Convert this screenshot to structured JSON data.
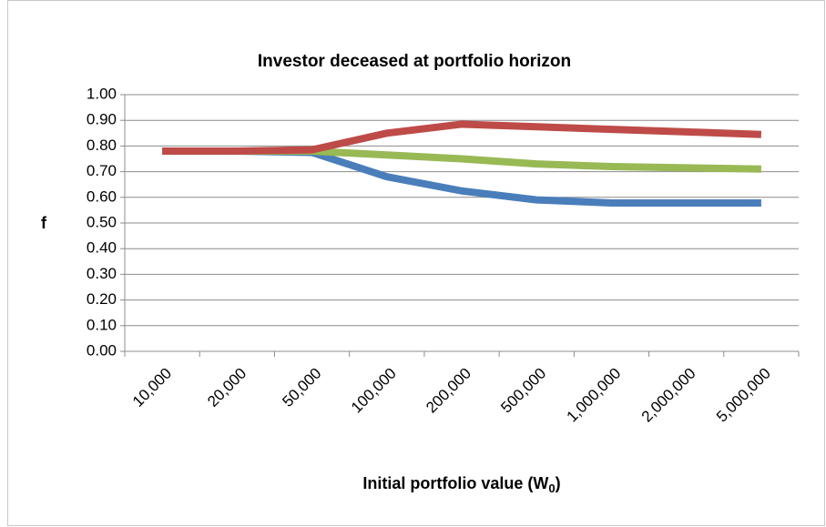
{
  "chart_data": {
    "type": "line",
    "title": "Investor deceased at portfolio horizon",
    "y_label": "f",
    "x_label": [
      "Initial portfolio value (W",
      "0",
      ")"
    ],
    "categories": [
      "10,000",
      "20,000",
      "50,000",
      "100,000",
      "200,000",
      "500,000",
      "1,000,000",
      "2,000,000",
      "5,000,000"
    ],
    "series": [
      {
        "color": "#be4b48",
        "values": [
          0.78,
          0.78,
          0.785,
          0.85,
          0.885,
          0.875,
          0.865,
          0.855,
          0.845
        ]
      },
      {
        "color": "#98b954",
        "values": [
          0.78,
          0.78,
          0.78,
          0.765,
          0.75,
          0.73,
          0.72,
          0.715,
          0.71
        ]
      },
      {
        "color": "#4a7ebb",
        "values": [
          0.78,
          0.78,
          0.775,
          0.68,
          0.625,
          0.59,
          0.578,
          0.578,
          0.578
        ]
      }
    ],
    "ylim": [
      0,
      1
    ],
    "yticks": [
      {
        "value": 0,
        "label": "0.00"
      },
      {
        "value": 0.1,
        "label": "0.10"
      },
      {
        "value": 0.2,
        "label": "0.20"
      },
      {
        "value": 0.3,
        "label": "0.30"
      },
      {
        "value": 0.4,
        "label": "0.40"
      },
      {
        "value": 0.5,
        "label": "0.50"
      },
      {
        "value": 0.6,
        "label": "0.60"
      },
      {
        "value": 0.7,
        "label": "0.70"
      },
      {
        "value": 0.8,
        "label": "0.80"
      },
      {
        "value": 0.9,
        "label": "0.90"
      },
      {
        "value": 1,
        "label": "1.00"
      }
    ],
    "grid": true
  }
}
